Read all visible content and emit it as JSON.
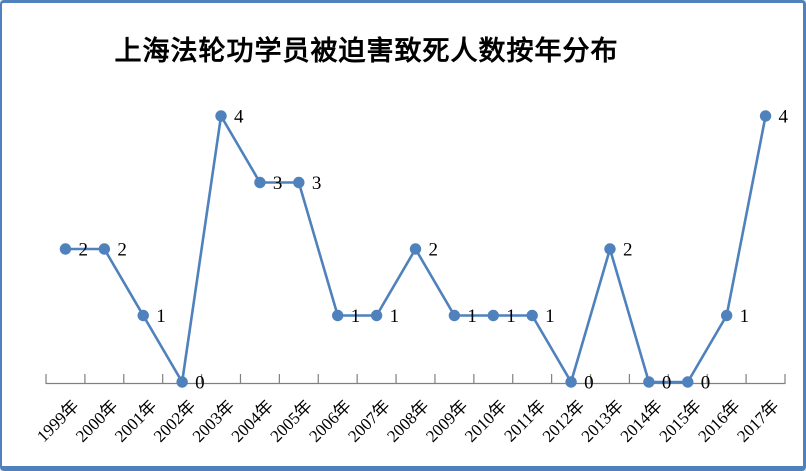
{
  "window": {
    "background": "#ffffff",
    "frame_border_color": "#4F81BD"
  },
  "chart_data": {
    "type": "line",
    "title": "上海法轮功学员被迫害致死人数按年分布",
    "categories": [
      "1999年",
      "2000年",
      "2001年",
      "2002年",
      "2003年",
      "2004年",
      "2005年",
      "2006年",
      "2007年",
      "2008年",
      "2009年",
      "2010年",
      "2011年",
      "2012年",
      "2013年",
      "2014年",
      "2015年",
      "2016年",
      "2017年"
    ],
    "values": [
      2,
      2,
      1,
      0,
      4,
      3,
      3,
      1,
      1,
      2,
      1,
      1,
      1,
      0,
      2,
      0,
      0,
      1,
      4
    ],
    "data_labels": [
      2,
      2,
      1,
      0,
      4,
      3,
      3,
      1,
      1,
      2,
      1,
      1,
      1,
      0,
      2,
      0,
      0,
      1,
      4
    ],
    "xlabel": "",
    "ylabel": "",
    "ylim": [
      0,
      4
    ],
    "grid": false,
    "legend": false,
    "y_axis_visible": false,
    "x_tick_rotation": -45,
    "line_color": "#4F81BD",
    "marker_color": "#4F81BD",
    "axis_color": "#808080",
    "label_color": "#000000"
  }
}
